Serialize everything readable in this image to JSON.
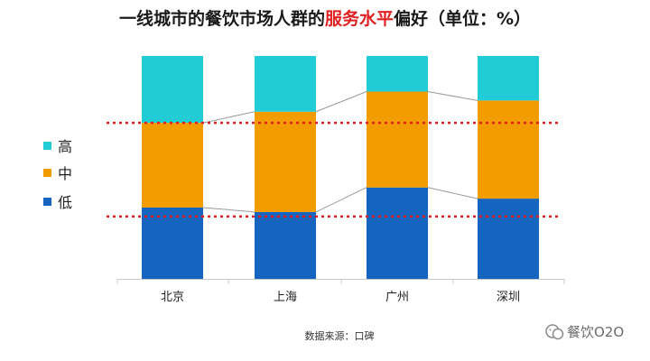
{
  "title": {
    "prefix": "一线城市的餐饮市场人群的",
    "highlight": "服务水平",
    "suffix": "偏好（单位：%）"
  },
  "source_note": "数据来源：口碑",
  "watermark": "餐饮O2O",
  "colors": {
    "high": "#22ccd6",
    "mid": "#f39c00",
    "low": "#1565c0",
    "reference_line": "#e02020",
    "connector": "#999999"
  },
  "chart_data": {
    "type": "bar",
    "stacked": true,
    "percent": true,
    "categories": [
      "北京",
      "上海",
      "广州",
      "深圳"
    ],
    "series": [
      {
        "name": "低",
        "values": [
          32,
          30,
          41,
          36
        ]
      },
      {
        "name": "中",
        "values": [
          38,
          45,
          43,
          44
        ]
      },
      {
        "name": "高",
        "values": [
          30,
          25,
          16,
          20
        ]
      }
    ],
    "ylim": [
      0,
      100
    ],
    "reference_lines": [
      28,
      70
    ],
    "legend": [
      "高",
      "中",
      "低"
    ],
    "legend_position": "left",
    "grid": false
  }
}
